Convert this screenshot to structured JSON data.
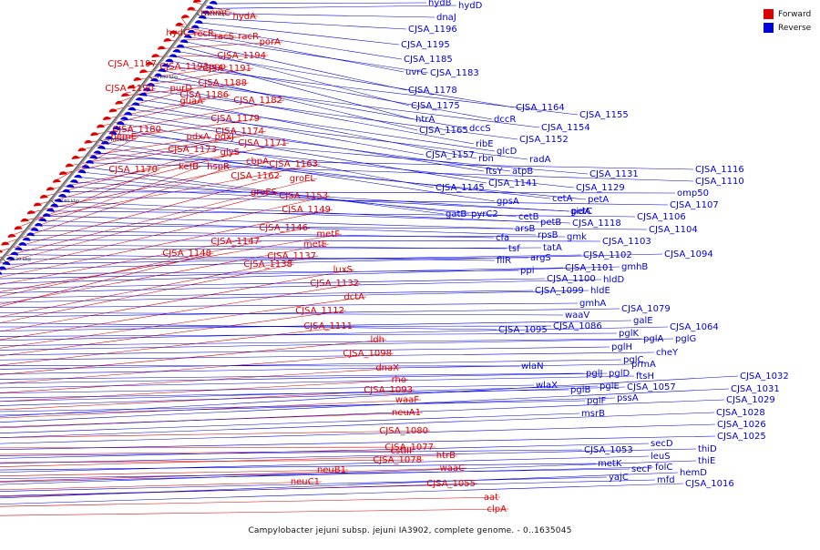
{
  "colors": {
    "forward": "#dd0000",
    "reverse": "#0000dd",
    "backbone": "#999999"
  },
  "legend": [
    {
      "label": "Forward",
      "color": "#dd0000"
    },
    {
      "label": "Reverse",
      "color": "#0000dd"
    }
  ],
  "caption": "Campylobacter jejuni subsp. jejuni IA3902, complete genome. - 0..1635045",
  "ticks": [
    "1200 kbp",
    "1180 kbp",
    "1160 kbp",
    "1140 kbp",
    "1120 kbp",
    "1100 kbp",
    "1080 kbp",
    "1060 kbp",
    "1040 kbp",
    "1020 kbp"
  ],
  "forward_labels": [
    "mnmC",
    "hydA",
    "hydC",
    "recR",
    "racS",
    "racR",
    "porA",
    "CJSA_1194",
    "CJSA_1197",
    "CJSA_1193",
    "pnp",
    "CJSA_1191",
    "CJSA_1188",
    "CJSA_1190",
    "purD",
    "CJSA_1186",
    "guaA",
    "CJSA_1182",
    "CJSA_1179",
    "CJSA_1180",
    "pdxA",
    "pdxJ",
    "CJSA_1174",
    "hemE",
    "CJSA_1171",
    "CJSA_1173",
    "glyS",
    "cbpA",
    "CJSA_1163",
    "CJSA_1170",
    "kefB",
    "hspR",
    "CJSA_1162",
    "groEL",
    "groES",
    "CJSA_1153",
    "CJSA_1149",
    "CJSA_1146",
    "metF",
    "CJSA_1147",
    "metE",
    "CJSA_1148",
    "CJSA_1137",
    "CJSA_1138",
    "luxS",
    "CJSA_1132",
    "dctA",
    "CJSA_1112",
    "CJSA_1111",
    "ldh",
    "CJSA_1098",
    "dnaX",
    "rho",
    "CJSA_1093",
    "waaF",
    "neuA1",
    "CJSA_1080",
    "CJSA_1077",
    "cstIII",
    "CJSA_1078",
    "htrB",
    "neuB1",
    "waaC",
    "neuC1",
    "CJSA_1055",
    "aat",
    "clpA"
  ],
  "reverse_labels": [
    "hydB",
    "hydD",
    "dnaJ",
    "CJSA_1196",
    "CJSA_1195",
    "CJSA_1185",
    "uvrC",
    "CJSA_1183",
    "CJSA_1178",
    "CJSA_1175",
    "CJSA_1164",
    "htrA",
    "dccR",
    "CJSA_1155",
    "CJSA_1165",
    "dccS",
    "CJSA_1154",
    "ribE",
    "CJSA_1152",
    "rbn",
    "glcD",
    "CJSA_1157",
    "radA",
    "ftsY",
    "atpB",
    "CJSA_1141",
    "CJSA_1145",
    "CJSA_1131",
    "CJSA_1129",
    "gpsA",
    "cetA",
    "petA",
    "CJSA_1116",
    "CJSA_1110",
    "gatB",
    "pyrC2",
    "cetB",
    "gidA",
    "petC",
    "omp50",
    "CJSA_1107",
    "petB",
    "CJSA_1118",
    "CJSA_1106",
    "arsB",
    "rpsB",
    "CJSA_1104",
    "cfa",
    "gmk",
    "CJSA_1103",
    "tsf",
    "tatA",
    "fliR",
    "argS",
    "CJSA_1102",
    "CJSA_1094",
    "ppi",
    "CJSA_1101",
    "gmhB",
    "CJSA_1100",
    "hldD",
    "CJSA_1099",
    "hldE",
    "gmhA",
    "waaV",
    "CJSA_1079",
    "CJSA_1095",
    "CJSA_1086",
    "galE",
    "pglK",
    "CJSA_1064",
    "pglA",
    "pglG",
    "pglH",
    "cheY",
    "wlaN",
    "pglC",
    "prmA",
    "pglJ",
    "pglD",
    "ftsH",
    "wlaX",
    "pglB",
    "pglE",
    "CJSA_1057",
    "pglF",
    "pssA",
    "CJSA_1032",
    "CJSA_1031",
    "CJSA_1029",
    "msrB",
    "CJSA_1028",
    "CJSA_1026",
    "CJSA_1025",
    "CJSA_1053",
    "secD",
    "thiD",
    "metK",
    "leuS",
    "secF",
    "folC",
    "thiE",
    "yajC",
    "mfd",
    "hemD",
    "CJSA_1016"
  ]
}
